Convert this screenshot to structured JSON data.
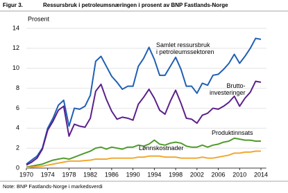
{
  "chart_data": {
    "type": "line",
    "figure_label": "Figur 3.",
    "title": "Ressursbruk i petroleumsnæringen i prosent av BNP Fastlands-Norge",
    "ylabel": "Prosent",
    "note": "Note: BNP Fastlands-Norge i markedsverdi",
    "x": [
      1970,
      1971,
      1972,
      1973,
      1974,
      1975,
      1976,
      1977,
      1978,
      1979,
      1980,
      1981,
      1982,
      1983,
      1984,
      1985,
      1986,
      1987,
      1988,
      1989,
      1990,
      1991,
      1992,
      1993,
      1994,
      1995,
      1996,
      1997,
      1998,
      1999,
      2000,
      2001,
      2002,
      2003,
      2004,
      2005,
      2006,
      2007,
      2008,
      2009,
      2010,
      2011,
      2012,
      2013,
      2014
    ],
    "xlim": [
      1970,
      2015
    ],
    "xticks": [
      1970,
      1974,
      1978,
      1982,
      1986,
      1990,
      1994,
      1998,
      2002,
      2006,
      2010,
      2014
    ],
    "ylim": [
      0,
      14
    ],
    "yticks": [
      0,
      2,
      4,
      6,
      8,
      10,
      12,
      14
    ],
    "grid": true,
    "series": [
      {
        "name": "Samlet ressursbruk\ni petroleumssektoren",
        "color": "#1f5fb4",
        "values": [
          0.4,
          0.8,
          1.2,
          2.0,
          4.0,
          5.0,
          6.3,
          6.8,
          4.2,
          6.0,
          5.9,
          6.2,
          7.3,
          10.7,
          11.2,
          10.2,
          9.2,
          8.6,
          7.9,
          8.2,
          8.2,
          10.2,
          11.0,
          12.1,
          10.9,
          9.3,
          9.3,
          10.2,
          11.1,
          9.9,
          8.2,
          8.2,
          7.5,
          8.5,
          8.3,
          9.3,
          9.4,
          9.9,
          10.5,
          11.4,
          10.5,
          11.2,
          12.0,
          13.0,
          12.9
        ]
      },
      {
        "name": "Brutto-\ninvesteringer",
        "color": "#5b1f8a",
        "values": [
          0.3,
          0.6,
          1.0,
          1.9,
          3.8,
          4.7,
          5.8,
          6.2,
          3.2,
          4.4,
          4.2,
          4.1,
          5.0,
          7.7,
          8.4,
          6.9,
          5.7,
          4.9,
          5.1,
          5.0,
          4.8,
          6.4,
          7.1,
          7.9,
          7.0,
          5.8,
          5.4,
          6.7,
          7.8,
          6.5,
          5.0,
          4.9,
          4.5,
          5.3,
          5.5,
          6.0,
          5.9,
          6.2,
          6.6,
          7.2,
          6.2,
          7.0,
          7.6,
          8.7,
          8.6
        ]
      },
      {
        "name": "Produktinnsats",
        "color": "#4f9a2c",
        "values": [
          0.1,
          0.2,
          0.3,
          0.4,
          0.6,
          0.8,
          0.9,
          1.0,
          0.9,
          1.1,
          1.3,
          1.5,
          1.7,
          2.0,
          2.1,
          1.9,
          2.1,
          2.0,
          1.9,
          2.1,
          2.1,
          2.3,
          2.2,
          2.4,
          2.8,
          2.4,
          2.3,
          2.5,
          2.6,
          2.5,
          2.2,
          2.1,
          2.1,
          2.3,
          2.1,
          2.3,
          2.4,
          2.6,
          2.7,
          3.0,
          2.9,
          2.8,
          2.8,
          2.7,
          2.7
        ]
      },
      {
        "name": "Lønnskostnader",
        "color": "#f0a830",
        "values": [
          0.05,
          0.1,
          0.15,
          0.2,
          0.3,
          0.4,
          0.5,
          0.6,
          0.7,
          0.7,
          0.7,
          0.75,
          0.8,
          0.9,
          0.9,
          0.9,
          1.0,
          1.0,
          1.0,
          1.0,
          1.0,
          1.1,
          1.1,
          1.2,
          1.2,
          1.2,
          1.1,
          1.1,
          1.1,
          1.0,
          1.0,
          1.0,
          1.0,
          1.1,
          1.0,
          1.0,
          1.1,
          1.2,
          1.3,
          1.5,
          1.5,
          1.6,
          1.6,
          1.7,
          1.7
        ]
      }
    ]
  }
}
